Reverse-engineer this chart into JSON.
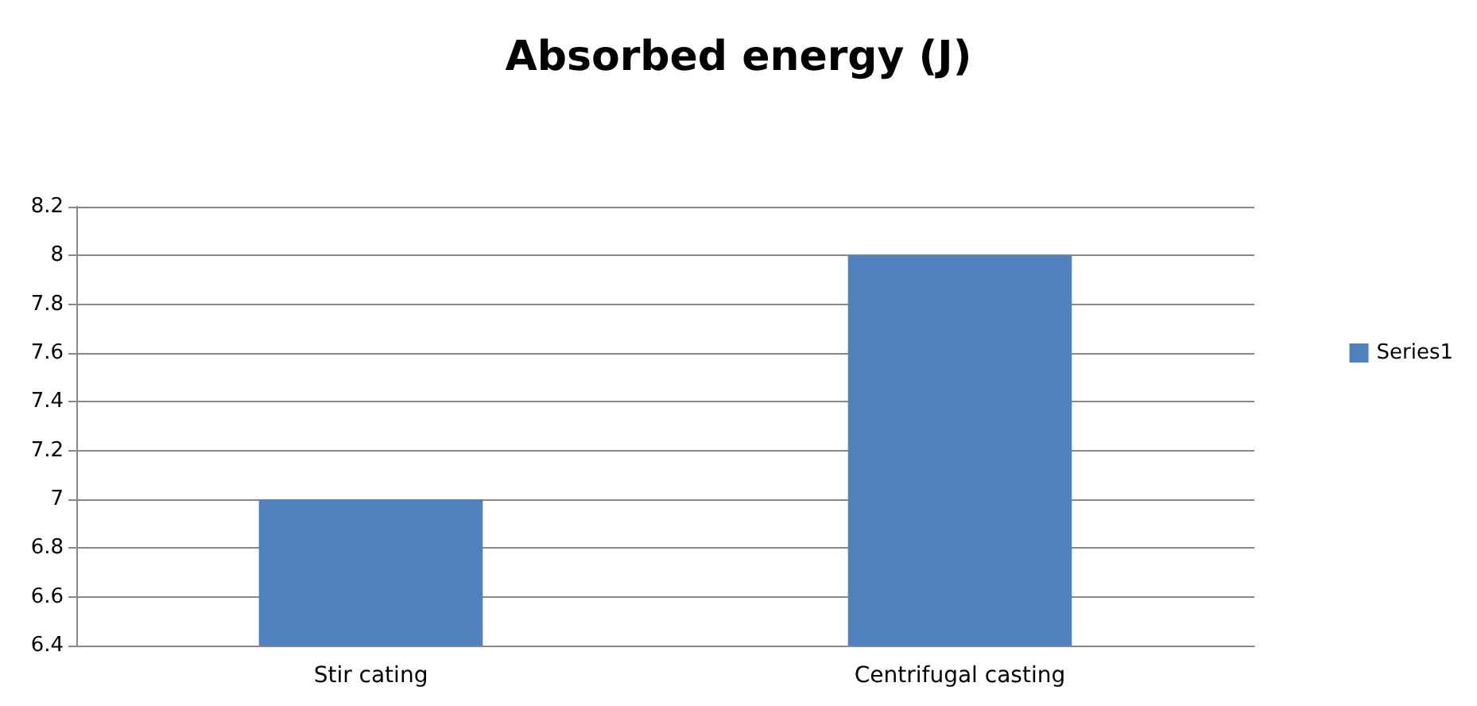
{
  "chart_data": {
    "type": "bar",
    "title": "Absorbed energy (J)",
    "categories": [
      "Stir cating",
      "Centrifugal casting"
    ],
    "series": [
      {
        "name": "Series1",
        "color": "#4f81bd",
        "values": [
          7,
          8
        ]
      }
    ],
    "ylim": [
      6.4,
      8.2
    ],
    "yticks": [
      6.4,
      6.6,
      6.8,
      7,
      7.2,
      7.4,
      7.6,
      7.8,
      8,
      8.2
    ],
    "grid": "y",
    "legend": "right"
  }
}
